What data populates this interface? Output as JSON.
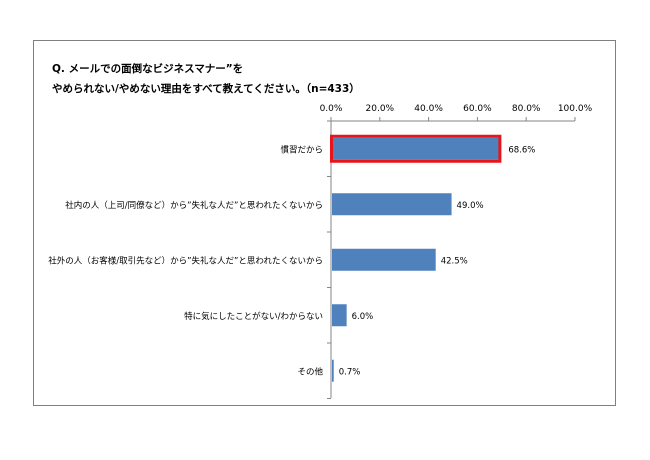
{
  "title_line1": "Q. メールでの面倒なビジネスマナー”を",
  "title_line2": "やめられない/やめない理由をすべて教えてください。（n=433）",
  "chart_data": {
    "type": "bar",
    "orientation": "horizontal",
    "categories": [
      "慣習だから",
      "社内の人（上司/同僚など）から”失礼な人だ”と思われたくないから",
      "社外の人（お客様/取引先など）から”失礼な人だ”と思われたくないから",
      "特に気にしたことがない/わからない",
      "その他"
    ],
    "values": [
      68.6,
      49.0,
      42.5,
      6.0,
      0.7
    ],
    "value_labels": [
      "68.6%",
      "49.0%",
      "42.5%",
      "6.0%",
      "0.7%"
    ],
    "xlim": [
      0,
      100
    ],
    "ticks": [
      "0.0%",
      "20.0%",
      "40.0%",
      "60.0%",
      "80.0%",
      "100.0%"
    ],
    "tick_values": [
      0,
      20,
      40,
      60,
      80,
      100
    ],
    "axis_position": "top",
    "highlight_index": 0,
    "bar_color": "#4f81bd",
    "highlight_color": "#e8141a",
    "title": "",
    "xlabel": "",
    "ylabel": ""
  }
}
